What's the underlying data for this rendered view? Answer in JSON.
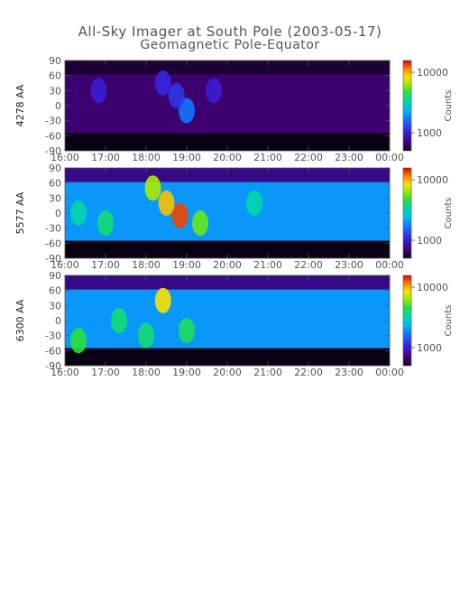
{
  "title": "All-Sky Imager at South Pole (2003-05-17)",
  "subtitle": "Geomagnetic Pole-Equator",
  "colors": {
    "axis": "#555555",
    "title": "#555555"
  },
  "chart_data": [
    {
      "type": "heatmap",
      "ylabel": "4278 AA",
      "xticks": [
        "16:00",
        "17:00",
        "18:00",
        "19:00",
        "20:00",
        "21:00",
        "22:00",
        "23:00",
        "00:00"
      ],
      "yticks": [
        "90",
        "60",
        "30",
        "0",
        "-30",
        "-60",
        "-90"
      ],
      "ylim": [
        -90,
        90
      ],
      "data_band": [
        -55,
        62
      ],
      "colorbar": {
        "label": "Counts",
        "ticks": [
          "10000",
          "1000"
        ],
        "scale": "log"
      },
      "background_level": 0.08,
      "features": [
        {
          "time": "19:00",
          "lat": -10,
          "level": 0.35
        },
        {
          "time": "18:45",
          "lat": 20,
          "level": 0.25
        },
        {
          "time": "18:25",
          "lat": 45,
          "level": 0.22
        },
        {
          "time": "19:40",
          "lat": 30,
          "level": 0.2
        },
        {
          "time": "16:50",
          "lat": 30,
          "level": 0.2
        }
      ]
    },
    {
      "type": "heatmap",
      "ylabel": "5577 AA",
      "xticks": [
        "16:00",
        "17:00",
        "18:00",
        "19:00",
        "20:00",
        "21:00",
        "22:00",
        "23:00",
        "00:00"
      ],
      "yticks": [
        "90",
        "60",
        "30",
        "0",
        "-30",
        "-60",
        "-90"
      ],
      "ylim": [
        -90,
        90
      ],
      "data_band": [
        -55,
        62
      ],
      "colorbar": {
        "label": "Counts",
        "ticks": [
          "10000",
          "1000"
        ],
        "scale": "log"
      },
      "background_level": 0.4,
      "features": [
        {
          "time": "18:50",
          "lat": -5,
          "level": 0.95
        },
        {
          "time": "18:30",
          "lat": 20,
          "level": 0.85
        },
        {
          "time": "18:10",
          "lat": 50,
          "level": 0.75
        },
        {
          "time": "19:20",
          "lat": -20,
          "level": 0.7
        },
        {
          "time": "17:00",
          "lat": -20,
          "level": 0.6
        },
        {
          "time": "20:40",
          "lat": 20,
          "level": 0.55
        },
        {
          "time": "16:20",
          "lat": 0,
          "level": 0.55
        }
      ]
    },
    {
      "type": "heatmap",
      "ylabel": "6300 AA",
      "xticks": [
        "16:00",
        "17:00",
        "18:00",
        "19:00",
        "20:00",
        "21:00",
        "22:00",
        "23:00",
        "00:00"
      ],
      "yticks": [
        "90",
        "60",
        "30",
        "0",
        "-30",
        "-60",
        "-90"
      ],
      "ylim": [
        -90,
        90
      ],
      "data_band": [
        -55,
        62
      ],
      "colorbar": {
        "label": "Counts",
        "ticks": [
          "10000",
          "1000"
        ],
        "scale": "log"
      },
      "background_level": 0.4,
      "features": [
        {
          "time": "18:25",
          "lat": 40,
          "level": 0.82
        },
        {
          "time": "16:20",
          "lat": -40,
          "level": 0.65
        },
        {
          "time": "17:20",
          "lat": 0,
          "level": 0.6
        },
        {
          "time": "19:00",
          "lat": -20,
          "level": 0.62
        },
        {
          "time": "18:00",
          "lat": -30,
          "level": 0.6
        }
      ]
    }
  ]
}
